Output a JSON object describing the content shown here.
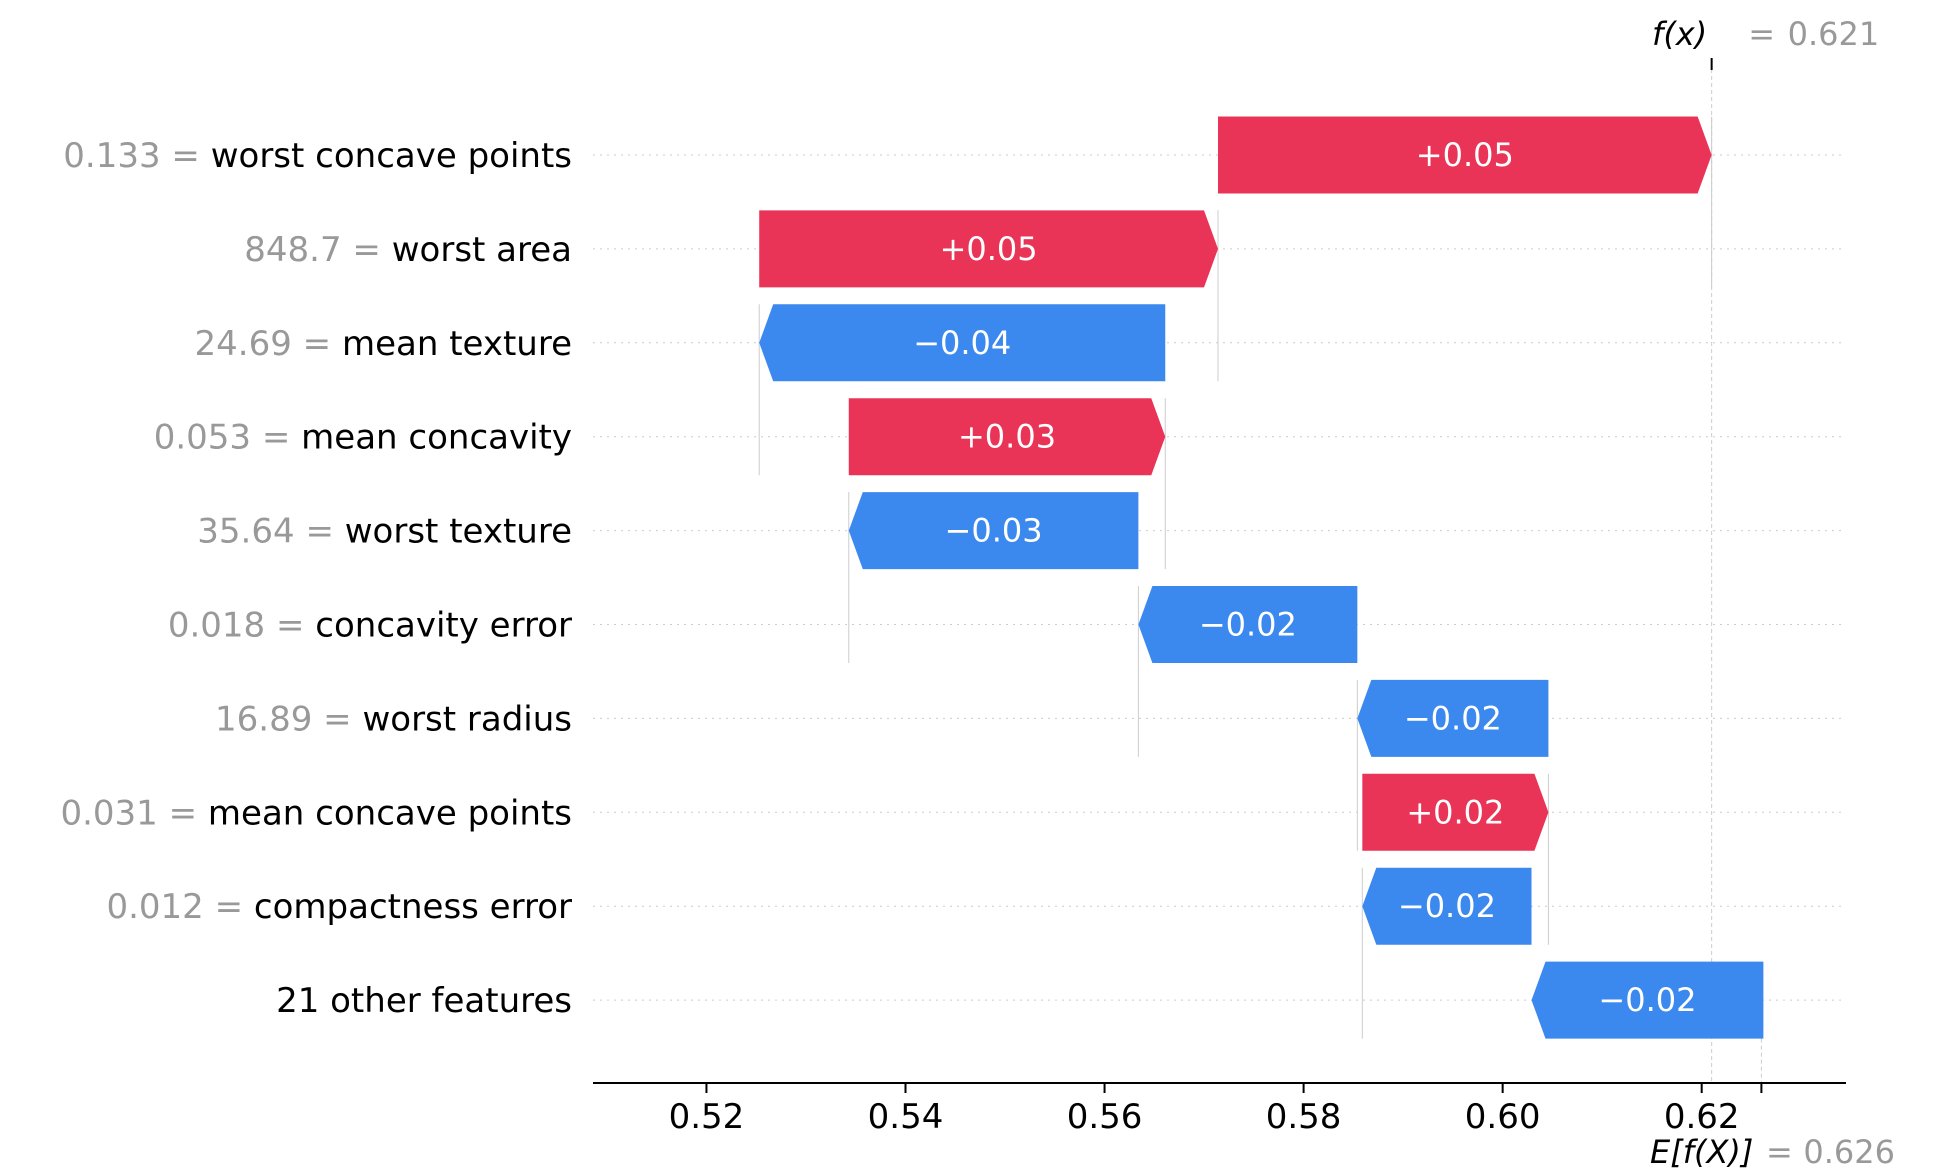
{
  "chart_data": {
    "type": "waterfall",
    "xlim": [
      0.5086,
      0.6345
    ],
    "x_ticks": [
      "0.52",
      "0.54",
      "0.56",
      "0.58",
      "0.60",
      "0.62"
    ],
    "base_value": 0.626,
    "output_value": 0.621,
    "top_annotation": {
      "label": "f(x)",
      "equals": "=",
      "value": "0.621"
    },
    "bottom_annotation": {
      "label": "E[f(X)]",
      "equals": "=",
      "value": "0.626"
    },
    "colors": {
      "positive": "#ea3457",
      "negative": "#3b89ef",
      "grid": "#cccccc",
      "axis": "#000000"
    },
    "features": [
      {
        "value": "0.133",
        "name": "worst concave points",
        "start": 0.5714,
        "end": 0.621,
        "label": "+0.05"
      },
      {
        "value": "848.7",
        "name": "worst area",
        "start": 0.5253,
        "end": 0.5714,
        "label": "+0.05"
      },
      {
        "value": "24.69",
        "name": "mean texture",
        "start": 0.5661,
        "end": 0.5253,
        "label": "−0.04"
      },
      {
        "value": "0.053",
        "name": "mean concavity",
        "start": 0.5343,
        "end": 0.5661,
        "label": "+0.03"
      },
      {
        "value": "35.64",
        "name": "worst texture",
        "start": 0.5634,
        "end": 0.5343,
        "label": "−0.03"
      },
      {
        "value": "0.018",
        "name": "concavity error",
        "start": 0.5854,
        "end": 0.5634,
        "label": "−0.02"
      },
      {
        "value": "16.89",
        "name": "worst radius",
        "start": 0.6046,
        "end": 0.5854,
        "label": "−0.02"
      },
      {
        "value": "0.031",
        "name": "mean concave points",
        "start": 0.5859,
        "end": 0.6046,
        "label": "+0.02"
      },
      {
        "value": "0.012",
        "name": "compactness error",
        "start": 0.6029,
        "end": 0.5859,
        "label": "−0.02"
      },
      {
        "value": "",
        "name": "21 other features",
        "start": 0.6262,
        "end": 0.6029,
        "label": "−0.02"
      }
    ]
  }
}
